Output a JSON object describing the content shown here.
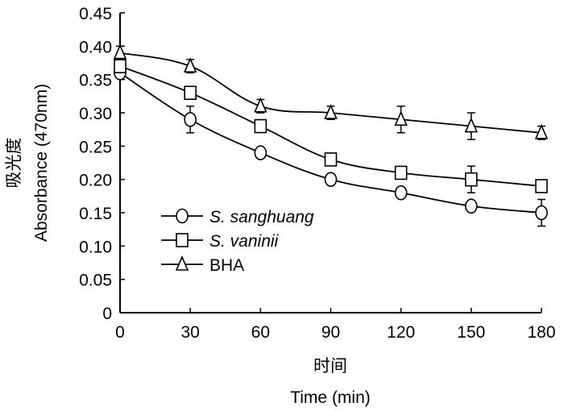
{
  "chart_data": {
    "type": "line",
    "title": "",
    "xlabel_cn": "时间",
    "xlabel": "Time (min)",
    "ylabel_cn": "吸光度",
    "ylabel": "Absorbance (470nm)",
    "xlim": [
      0,
      180
    ],
    "ylim": [
      0,
      0.45
    ],
    "xticks": [
      0,
      30,
      60,
      90,
      120,
      150,
      180
    ],
    "xtick_labels": [
      "0",
      "30",
      "60",
      "90",
      "120",
      "150",
      "180"
    ],
    "yticks": [
      0,
      0.05,
      0.1,
      0.15,
      0.2,
      0.25,
      0.3,
      0.35,
      0.4,
      0.45
    ],
    "ytick_labels": [
      "0",
      "0.05",
      "0.10",
      "0.15",
      "0.20",
      "0.25",
      "0.30",
      "0.35",
      "0.40",
      "0.45"
    ],
    "grid": false,
    "legend_position": "lower-left",
    "x": [
      0,
      30,
      60,
      90,
      120,
      150,
      180
    ],
    "series": [
      {
        "name": "S. sanghuang",
        "italic": true,
        "marker": "circle",
        "values": [
          0.36,
          0.29,
          0.24,
          0.2,
          0.18,
          0.16,
          0.15
        ],
        "errors": [
          0.005,
          0.02,
          0.005,
          0.005,
          0.005,
          0.005,
          0.02
        ]
      },
      {
        "name": "S. vaninii",
        "italic": true,
        "marker": "square",
        "values": [
          0.37,
          0.33,
          0.28,
          0.23,
          0.21,
          0.2,
          0.19
        ],
        "errors": [
          0.005,
          0.005,
          0.005,
          0.005,
          0.005,
          0.02,
          0.005
        ]
      },
      {
        "name": "BHA",
        "italic": false,
        "marker": "triangle",
        "values": [
          0.39,
          0.37,
          0.31,
          0.3,
          0.29,
          0.28,
          0.27
        ],
        "errors": [
          0.01,
          0.01,
          0.01,
          0.01,
          0.02,
          0.02,
          0.01
        ]
      }
    ],
    "colors": {
      "line": "#000000",
      "marker_fill": "#ffffff"
    }
  }
}
